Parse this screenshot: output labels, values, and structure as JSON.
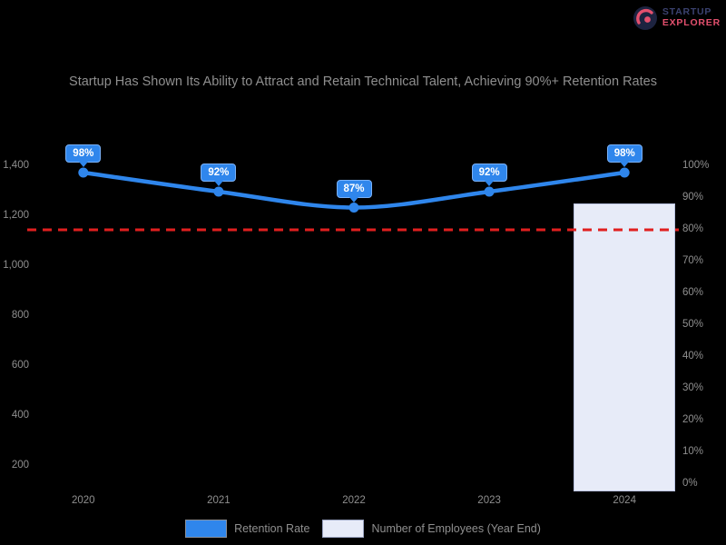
{
  "page": {
    "background": "#000000"
  },
  "header": {
    "logo": {
      "icon": "explorer-badge-icon",
      "line1": "STARTUP",
      "line2": "EXPLORER",
      "line1_color": "#3b4270",
      "line2_color": "#e4506e",
      "badge_color": "#1d2340",
      "badge_accent": "#e4506e"
    }
  },
  "chart_data": {
    "type": "combo",
    "title": "Startup Has Shown Its Ability to Attract and Retain Technical Talent, Achieving 90%+ Retention Rates",
    "categories": [
      "2020",
      "2021",
      "2022",
      "2023",
      "2024"
    ],
    "series": [
      {
        "name": "Retention Rate",
        "type": "line",
        "axis": "right",
        "unit": "%",
        "values": [
          98,
          92,
          87,
          92,
          98
        ],
        "data_labels": [
          "98%",
          "92%",
          "87%",
          "92%",
          "98%"
        ],
        "color": "#2f86ec"
      },
      {
        "name": "Number of Employees (Year End)",
        "type": "bar",
        "axis": "left",
        "values": [
          null,
          null,
          null,
          null,
          1250
        ],
        "color": "#e7ebf8",
        "border_color": "#b9c2e0"
      }
    ],
    "right_axis": {
      "ticks": [
        "100%",
        "90%",
        "80%",
        "70%",
        "60%",
        "50%",
        "40%",
        "30%",
        "20%",
        "10%",
        "0%"
      ],
      "max": 100,
      "min": 0,
      "step": 10
    },
    "left_axis": {
      "ticks": [
        "1,400",
        "1,200",
        "1,000",
        "800",
        "600",
        "400",
        "200"
      ],
      "max": 1400,
      "step": 200
    },
    "reference_line": {
      "axis": "right",
      "value": 80,
      "color": "#e01f1f",
      "style": "dashed"
    },
    "legend_position": "bottom",
    "grid": false
  }
}
